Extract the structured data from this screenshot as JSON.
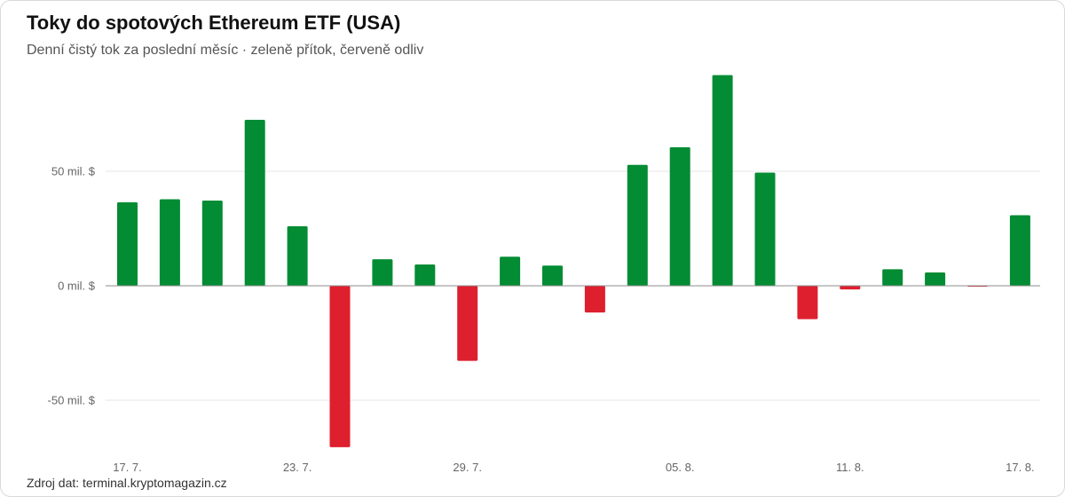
{
  "header": {
    "title": "Toky do spotových Ethereum ETF (USA)",
    "subtitle": "Denní čistý tok za poslední měsíc · zeleně přítok, červeně odliv"
  },
  "footer": {
    "source": "Zdroj dat: terminal.kryptomagazin.cz"
  },
  "colors": {
    "inflow": "#038c33",
    "outflow": "#de1f2e",
    "grid": "#e6e6e6",
    "zero_line": "#8c8c8c"
  },
  "chart_data": {
    "type": "bar",
    "title": "Toky do spotových Ethereum ETF (USA)",
    "subtitle": "Denní čistý tok za poslední měsíc · zeleně přítok, červeně odliv",
    "ylabel": "",
    "xlabel": "",
    "unit": "mil. $",
    "ylim": [
      -70,
      90
    ],
    "y_ticks": [
      {
        "value": 50,
        "label": "50 mil. $"
      },
      {
        "value": 0,
        "label": "0 mil. $"
      },
      {
        "value": -50,
        "label": "-50 mil. $"
      }
    ],
    "grid": true,
    "legend": "none",
    "x_tick_labels": [
      {
        "index": 0,
        "label": "17. 7."
      },
      {
        "index": 4,
        "label": "23. 7."
      },
      {
        "index": 8,
        "label": "29. 7."
      },
      {
        "index": 13,
        "label": "05. 8."
      },
      {
        "index": 17,
        "label": "11. 8."
      },
      {
        "index": 21,
        "label": "17. 8."
      }
    ],
    "values": [
      36.5,
      37.8,
      37.2,
      72.5,
      26.0,
      -70.5,
      11.6,
      9.3,
      -32.8,
      12.7,
      8.8,
      -11.7,
      52.8,
      60.5,
      92.0,
      49.4,
      -14.6,
      -1.6,
      7.2,
      5.8,
      -0.3,
      30.8
    ]
  }
}
